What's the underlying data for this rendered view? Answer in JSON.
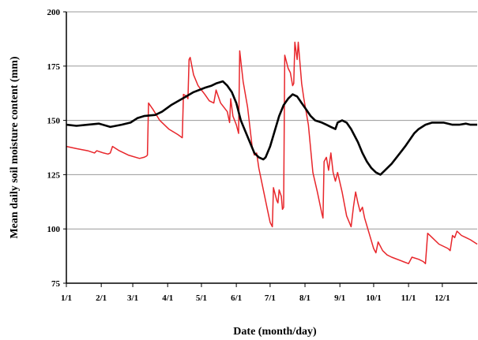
{
  "chart_data": {
    "type": "line",
    "title": "",
    "xlabel": "Date (month/day)",
    "ylabel": "Mean daily soil moisture content (mm)",
    "ylim": [
      75,
      200
    ],
    "yticks": [
      75,
      100,
      125,
      150,
      175,
      200
    ],
    "xlim": [
      1,
      366
    ],
    "xticks": [
      {
        "label": "1/1",
        "day": 1
      },
      {
        "label": "2/1",
        "day": 32
      },
      {
        "label": "3/1",
        "day": 60
      },
      {
        "label": "4/1",
        "day": 91
      },
      {
        "label": "5/1",
        "day": 121
      },
      {
        "label": "6/1",
        "day": 152
      },
      {
        "label": "7/1",
        "day": 182
      },
      {
        "label": "8/1",
        "day": 213
      },
      {
        "label": "9/1",
        "day": 244
      },
      {
        "label": "10/1",
        "day": 274
      },
      {
        "label": "11/1",
        "day": 305
      },
      {
        "label": "12/1",
        "day": 335
      }
    ],
    "grid": true,
    "colors": {
      "red_series": "#e8262b",
      "black_series": "#000000",
      "grid": "#999999"
    },
    "series": [
      {
        "color": "#e8262b",
        "points": [
          [
            1,
            138
          ],
          [
            10,
            137
          ],
          [
            20,
            136
          ],
          [
            26,
            135
          ],
          [
            28,
            136
          ],
          [
            34,
            135
          ],
          [
            38,
            134.5
          ],
          [
            40,
            135
          ],
          [
            42,
            138
          ],
          [
            48,
            136
          ],
          [
            56,
            134
          ],
          [
            66,
            132.5
          ],
          [
            70,
            133
          ],
          [
            72,
            133.5
          ],
          [
            73,
            134
          ],
          [
            74,
            158
          ],
          [
            78,
            155
          ],
          [
            84,
            150
          ],
          [
            92,
            146
          ],
          [
            100,
            143.5
          ],
          [
            104,
            142
          ],
          [
            105,
            162
          ],
          [
            108,
            161
          ],
          [
            109,
            160
          ],
          [
            110,
            178
          ],
          [
            111,
            179
          ],
          [
            114,
            171
          ],
          [
            118,
            166
          ],
          [
            124,
            162
          ],
          [
            128,
            159
          ],
          [
            132,
            158
          ],
          [
            134,
            164
          ],
          [
            138,
            158
          ],
          [
            144,
            154
          ],
          [
            146,
            149
          ],
          [
            147,
            160
          ],
          [
            149,
            152
          ],
          [
            152,
            148
          ],
          [
            154,
            144
          ],
          [
            155,
            182
          ],
          [
            158,
            168
          ],
          [
            162,
            156
          ],
          [
            166,
            138
          ],
          [
            168,
            134
          ],
          [
            170,
            135
          ],
          [
            172,
            128
          ],
          [
            176,
            118
          ],
          [
            180,
            108
          ],
          [
            182,
            103
          ],
          [
            184,
            101
          ],
          [
            185,
            119
          ],
          [
            188,
            113
          ],
          [
            189,
            112
          ],
          [
            190,
            118
          ],
          [
            192,
            115
          ],
          [
            193,
            109
          ],
          [
            194,
            110
          ],
          [
            195,
            180
          ],
          [
            198,
            174
          ],
          [
            200,
            172
          ],
          [
            202,
            166
          ],
          [
            203,
            167
          ],
          [
            204,
            186
          ],
          [
            206,
            178
          ],
          [
            207,
            186
          ],
          [
            210,
            167
          ],
          [
            212,
            160
          ],
          [
            216,
            148
          ],
          [
            220,
            126
          ],
          [
            224,
            117
          ],
          [
            228,
            107
          ],
          [
            229,
            105
          ],
          [
            230,
            131
          ],
          [
            232,
            133
          ],
          [
            234,
            127
          ],
          [
            236,
            135
          ],
          [
            238,
            126
          ],
          [
            240,
            122
          ],
          [
            242,
            126
          ],
          [
            246,
            117
          ],
          [
            250,
            106
          ],
          [
            254,
            101
          ],
          [
            256,
            110
          ],
          [
            258,
            117
          ],
          [
            260,
            112
          ],
          [
            262,
            108
          ],
          [
            264,
            110
          ],
          [
            266,
            105
          ],
          [
            270,
            98
          ],
          [
            274,
            91
          ],
          [
            276,
            89
          ],
          [
            278,
            94
          ],
          [
            282,
            90
          ],
          [
            286,
            88
          ],
          [
            290,
            87
          ],
          [
            300,
            85
          ],
          [
            305,
            84
          ],
          [
            308,
            87
          ],
          [
            314,
            86
          ],
          [
            318,
            85
          ],
          [
            320,
            84
          ],
          [
            322,
            98
          ],
          [
            326,
            96
          ],
          [
            332,
            93
          ],
          [
            340,
            91
          ],
          [
            342,
            90
          ],
          [
            344,
            97
          ],
          [
            346,
            96
          ],
          [
            348,
            99
          ],
          [
            352,
            97
          ],
          [
            356,
            96
          ],
          [
            360,
            95
          ],
          [
            366,
            93
          ]
        ]
      },
      {
        "color": "#000000",
        "points": [
          [
            1,
            148
          ],
          [
            10,
            147.5
          ],
          [
            20,
            148
          ],
          [
            30,
            148.5
          ],
          [
            40,
            147
          ],
          [
            50,
            148
          ],
          [
            58,
            149
          ],
          [
            64,
            151
          ],
          [
            70,
            152
          ],
          [
            80,
            152.5
          ],
          [
            86,
            154
          ],
          [
            94,
            157
          ],
          [
            104,
            160
          ],
          [
            114,
            163
          ],
          [
            124,
            165
          ],
          [
            130,
            166
          ],
          [
            134,
            167
          ],
          [
            140,
            168
          ],
          [
            144,
            166
          ],
          [
            148,
            163
          ],
          [
            152,
            158
          ],
          [
            156,
            150
          ],
          [
            160,
            145
          ],
          [
            164,
            140
          ],
          [
            168,
            135
          ],
          [
            172,
            133
          ],
          [
            176,
            132
          ],
          [
            178,
            133
          ],
          [
            182,
            138
          ],
          [
            186,
            145
          ],
          [
            190,
            152
          ],
          [
            194,
            157
          ],
          [
            198,
            160
          ],
          [
            202,
            162
          ],
          [
            206,
            161
          ],
          [
            210,
            158
          ],
          [
            214,
            155
          ],
          [
            218,
            152
          ],
          [
            222,
            150
          ],
          [
            228,
            149
          ],
          [
            232,
            148
          ],
          [
            236,
            147
          ],
          [
            240,
            146
          ],
          [
            242,
            149
          ],
          [
            246,
            150
          ],
          [
            250,
            149
          ],
          [
            254,
            146
          ],
          [
            260,
            140
          ],
          [
            264,
            135
          ],
          [
            268,
            131
          ],
          [
            272,
            128
          ],
          [
            276,
            126
          ],
          [
            280,
            125
          ],
          [
            284,
            127
          ],
          [
            290,
            130
          ],
          [
            296,
            134
          ],
          [
            302,
            138
          ],
          [
            306,
            141
          ],
          [
            310,
            144
          ],
          [
            314,
            146
          ],
          [
            320,
            148
          ],
          [
            326,
            149
          ],
          [
            336,
            149
          ],
          [
            344,
            148
          ],
          [
            350,
            148
          ],
          [
            356,
            148.5
          ],
          [
            360,
            148
          ],
          [
            366,
            148
          ]
        ]
      }
    ]
  }
}
